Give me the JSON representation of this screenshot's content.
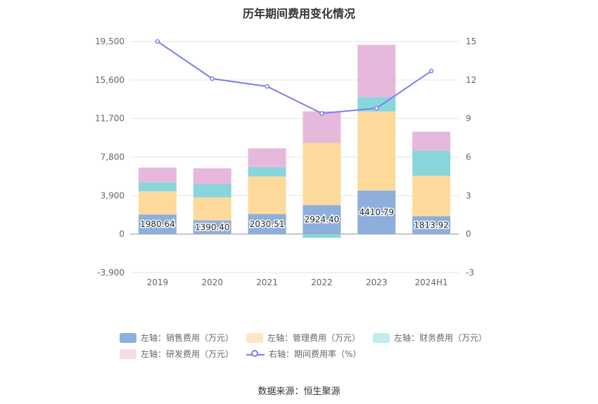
{
  "title": "历年期间费用变化情况",
  "source": "数据来源：恒生聚源",
  "chart_data": {
    "type": "bar",
    "stacked": true,
    "categories": [
      "2019",
      "2020",
      "2021",
      "2022",
      "2023",
      "2024H1"
    ],
    "y_left": {
      "ticks": [
        "-3,900",
        "0",
        "3,900",
        "7,800",
        "11,700",
        "15,600",
        "19,500"
      ],
      "ylim": [
        -3900,
        19500
      ]
    },
    "y_right": {
      "ticks": [
        "-3",
        "0",
        "3",
        "6",
        "9",
        "12",
        "15"
      ],
      "ylim": [
        -3,
        15
      ]
    },
    "series": [
      {
        "name": "左轴：销售费用（万元）",
        "color": "#8eaedc",
        "values": [
          1980.64,
          1390.4,
          2030.51,
          2924.4,
          4410.79,
          1813.92
        ],
        "labels": [
          "1980.64",
          "1390.40",
          "2030.51",
          "2924.40",
          "4410.79",
          "1813.92"
        ]
      },
      {
        "name": "左轴：管理费用（万元）",
        "color": "#fdda9b",
        "values": [
          2350,
          2320,
          3800,
          6300,
          8000,
          4100
        ]
      },
      {
        "name": "左轴：财务费用（万元）",
        "color": "#88d6dc",
        "values": [
          900,
          1350,
          950,
          -380,
          1450,
          2550
        ]
      },
      {
        "name": "左轴：研发费用（万元）",
        "color": "#e6b9dc",
        "values": [
          1500,
          1600,
          1900,
          3200,
          5300,
          1900
        ]
      },
      {
        "name": "右轴：期间费用率（%）",
        "color": "#7b7ff0",
        "type": "line",
        "axis": "right",
        "values": [
          15.0,
          12.1,
          11.5,
          9.4,
          9.8,
          12.7
        ]
      }
    ],
    "legend_placement": "bottom",
    "grid": true
  }
}
